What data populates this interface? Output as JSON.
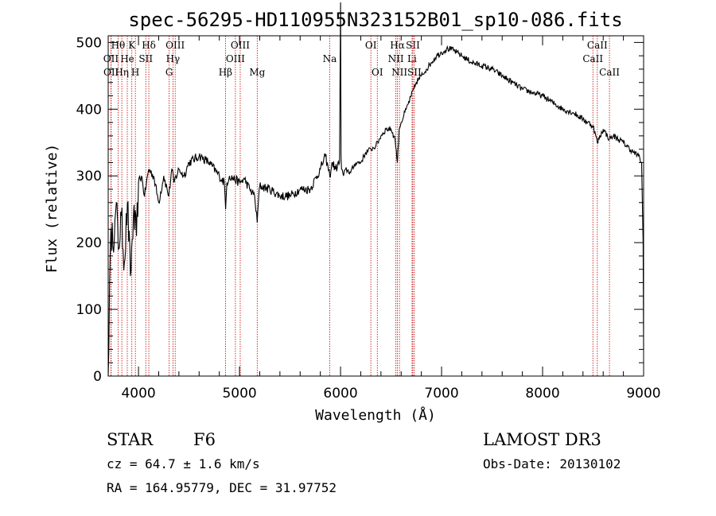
{
  "chart_data": {
    "type": "line",
    "title": "spec-56295-HD110955N323152B01_sp10-086.fits",
    "xlabel": "Wavelength (Å)",
    "ylabel": "Flux (relative)",
    "xlim": [
      3700,
      9000
    ],
    "ylim": [
      0,
      510
    ],
    "xticks": [
      4000,
      5000,
      6000,
      7000,
      8000,
      9000
    ],
    "yticks": [
      0,
      100,
      200,
      300,
      400,
      500
    ],
    "series": [
      {
        "name": "flux",
        "x": [
          3700,
          3720,
          3740,
          3760,
          3780,
          3800,
          3830,
          3860,
          3890,
          3920,
          3950,
          3980,
          4000,
          4030,
          4060,
          4100,
          4150,
          4200,
          4250,
          4300,
          4330,
          4350,
          4400,
          4450,
          4500,
          4600,
          4700,
          4800,
          4850,
          4862,
          4875,
          4900,
          5000,
          5050,
          5100,
          5150,
          5175,
          5190,
          5200,
          5300,
          5400,
          5500,
          5600,
          5700,
          5800,
          5850,
          5893,
          5920,
          5950,
          5990,
          6000,
          6005,
          6010,
          6030,
          6050,
          6100,
          6150,
          6200,
          6250,
          6300,
          6350,
          6400,
          6450,
          6500,
          6540,
          6563,
          6580,
          6600,
          6650,
          6700,
          6750,
          6800,
          6850,
          6900,
          6950,
          7000,
          7050,
          7100,
          7150,
          7200,
          7300,
          7400,
          7500,
          7600,
          7700,
          7800,
          7900,
          8000,
          8100,
          8200,
          8300,
          8400,
          8500,
          8542,
          8600,
          8662,
          8700,
          8800,
          8900,
          8950,
          8980,
          8995,
          9000
        ],
        "values": [
          0,
          180,
          230,
          200,
          260,
          190,
          240,
          170,
          260,
          150,
          240,
          210,
          290,
          300,
          270,
          310,
          300,
          260,
          300,
          270,
          310,
          290,
          310,
          300,
          320,
          330,
          320,
          300,
          290,
          250,
          290,
          300,
          290,
          295,
          280,
          270,
          230,
          270,
          285,
          280,
          270,
          270,
          280,
          280,
          310,
          330,
          300,
          320,
          310,
          320,
          560,
          330,
          310,
          300,
          310,
          305,
          320,
          320,
          335,
          340,
          345,
          360,
          370,
          370,
          355,
          320,
          370,
          380,
          400,
          420,
          440,
          450,
          460,
          470,
          480,
          485,
          490,
          490,
          485,
          480,
          470,
          465,
          460,
          450,
          440,
          430,
          425,
          420,
          410,
          400,
          395,
          385,
          375,
          350,
          370,
          355,
          360,
          350,
          335,
          330,
          320,
          200,
          40
        ]
      }
    ],
    "line_markers": [
      {
        "label": "Hθ",
        "x": 3798,
        "row": 0
      },
      {
        "label": "OII",
        "x": 3727,
        "row": 1
      },
      {
        "label": "OII",
        "x": 3729,
        "row": 2
      },
      {
        "label": "K",
        "x": 3934,
        "row": 0
      },
      {
        "label": "He",
        "x": 3889,
        "row": 1
      },
      {
        "label": "Hη",
        "x": 3835,
        "row": 2
      },
      {
        "label": "Hδ",
        "x": 4102,
        "row": 0
      },
      {
        "label": "SII",
        "x": 4072,
        "row": 1
      },
      {
        "label": "H",
        "x": 3969,
        "row": 2
      },
      {
        "label": "OIII",
        "x": 4363,
        "row": 0
      },
      {
        "label": "Hγ",
        "x": 4341,
        "row": 1
      },
      {
        "label": "G",
        "x": 4304,
        "row": 2
      },
      {
        "label": "OIII",
        "x": 5007,
        "row": 0
      },
      {
        "label": "OIII",
        "x": 4959,
        "row": 1
      },
      {
        "label": "Hβ",
        "x": 4861,
        "row": 2
      },
      {
        "label": "Mg",
        "x": 5175,
        "row": 2
      },
      {
        "label": "Na",
        "x": 5893,
        "row": 1
      },
      {
        "label": "OI",
        "x": 6300,
        "row": 0
      },
      {
        "label": "OI",
        "x": 6364,
        "row": 2
      },
      {
        "label": "Hα",
        "x": 6563,
        "row": 0
      },
      {
        "label": "SII",
        "x": 6716,
        "row": 0
      },
      {
        "label": "NII",
        "x": 6548,
        "row": 1
      },
      {
        "label": "Li",
        "x": 6708,
        "row": 1
      },
      {
        "label": "NII",
        "x": 6583,
        "row": 2
      },
      {
        "label": "SII",
        "x": 6731,
        "row": 2
      },
      {
        "label": "CaII",
        "x": 8542,
        "row": 0
      },
      {
        "label": "CaII",
        "x": 8498,
        "row": 1
      },
      {
        "label": "CaII",
        "x": 8662,
        "row": 2
      }
    ],
    "line_color": "#000000",
    "marker_color": "#c00000"
  },
  "info": {
    "obj_class": "STAR",
    "subclass": "F6",
    "survey": "LAMOST DR3",
    "cz": "cz = 64.7 ± 1.6 km/s",
    "obs_date": "Obs-Date: 20130102",
    "coords": "RA = 164.95779, DEC =  31.97752"
  }
}
